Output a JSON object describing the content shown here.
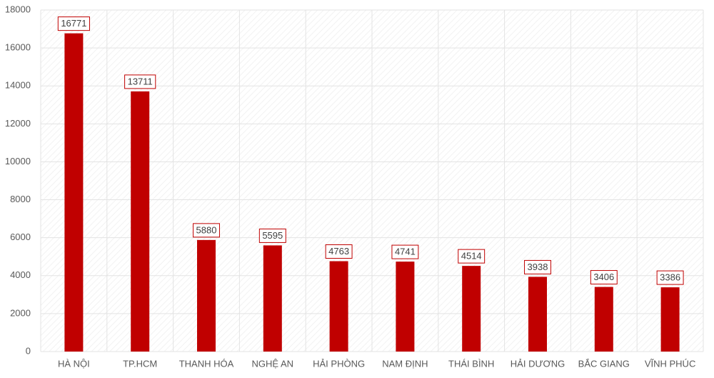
{
  "chart_data": {
    "type": "bar",
    "categories": [
      "HÀ NỘI",
      "TP.HCM",
      "THANH HÓA",
      "NGHỆ AN",
      "HẢI PHÒNG",
      "NAM ĐỊNH",
      "THÁI BÌNH",
      "HẢI DƯƠNG",
      "BẮC GIANG",
      "VĨNH PHÚC"
    ],
    "values": [
      16771,
      13711,
      5880,
      5595,
      4763,
      4741,
      4514,
      3938,
      3406,
      3386
    ],
    "color": "#c00000",
    "ylim": [
      0,
      18000
    ],
    "yticks": [
      0,
      2000,
      4000,
      6000,
      8000,
      10000,
      12000,
      14000,
      16000,
      18000
    ],
    "grid": true
  }
}
